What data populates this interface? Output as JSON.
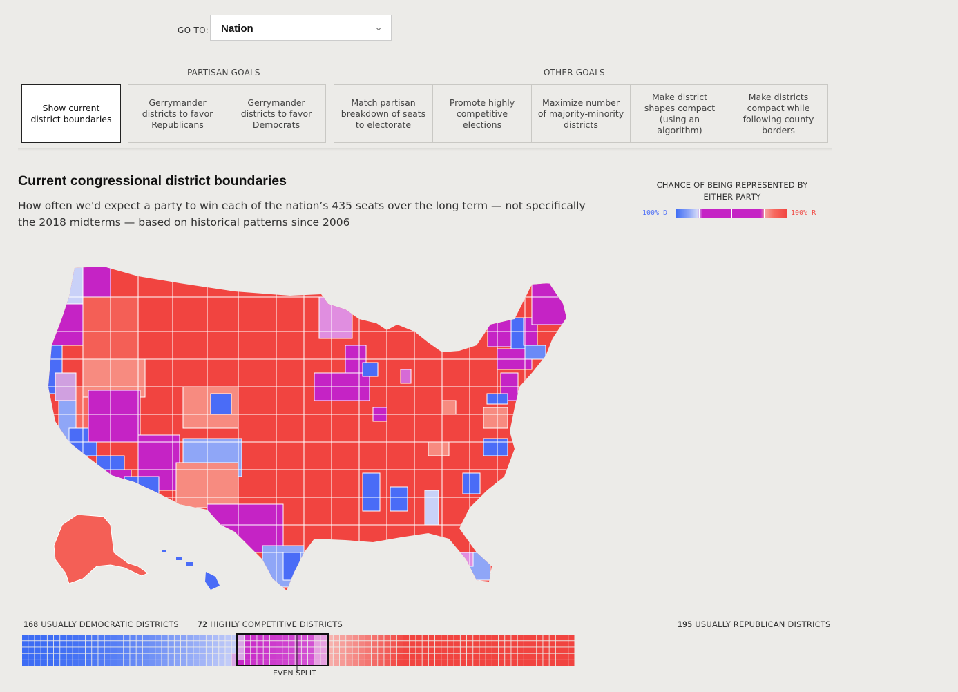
{
  "goto": {
    "label": "GO TO:",
    "selected": "Nation"
  },
  "groups": {
    "partisan": "PARTISAN GOALS",
    "other": "OTHER GOALS"
  },
  "buttons": [
    "Show current district boundaries",
    "Gerrymander districts to favor Republicans",
    "Gerrymander districts to favor Democrats",
    "Match partisan breakdown of seats to electorate",
    "Promote highly competitive elections",
    "Maximize number of majority-minority districts",
    "Make district shapes compact (using an algorithm)",
    "Make districts compact while following county borders"
  ],
  "title": "Current congressional district boundaries",
  "subtitle": "How often we'd expect a party to win each of the nation’s 435 seats over the long term — not specifically the 2018 midterms — based on historical patterns since 2006",
  "legend": {
    "title": "CHANCE OF BEING REPRESENTED BY EITHER PARTY",
    "left": "100% D",
    "right": "100% R"
  },
  "colors": {
    "dem": "#4a6cf7",
    "competitive": "#c523c5",
    "rep": "#f14440",
    "background": "#ecebe8"
  },
  "summary": {
    "dem_count": "168",
    "dem_label": "USUALLY DEMOCRATIC DISTRICTS",
    "comp_count": "72",
    "comp_label": "HIGHLY COMPETITIVE DISTRICTS",
    "rep_count": "195",
    "rep_label": "USUALLY REPUBLICAN DISTRICTS",
    "even_split": "EVEN SPLIT"
  }
}
